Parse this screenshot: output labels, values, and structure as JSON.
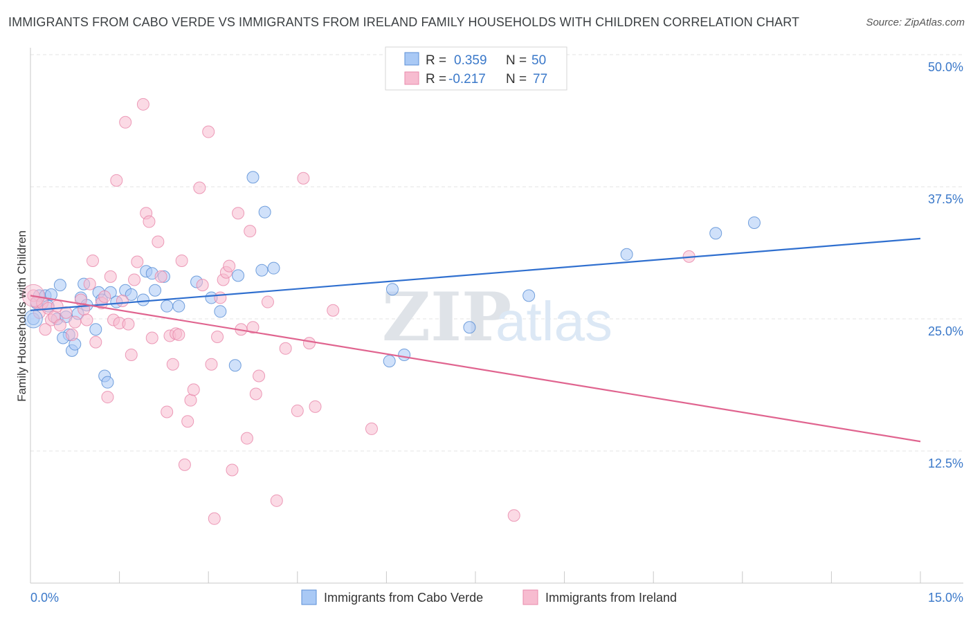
{
  "title": "IMMIGRANTS FROM CABO VERDE VS IMMIGRANTS FROM IRELAND FAMILY HOUSEHOLDS WITH CHILDREN CORRELATION CHART",
  "source": "Source: ZipAtlas.com",
  "watermark": {
    "zip": "ZIP",
    "atlas": "atlas"
  },
  "legend": {
    "r_label": "R =",
    "n_label": "N =",
    "rows": [
      {
        "r": "0.359",
        "n": "50",
        "fill": "#a9c9f5",
        "stroke": "#5b8fd6"
      },
      {
        "r": "-0.217",
        "n": "77",
        "fill": "#f7bcd0",
        "stroke": "#e98aab"
      }
    ]
  },
  "chart_data": {
    "type": "scatter",
    "title": "IMMIGRANTS FROM CABO VERDE VS IMMIGRANTS FROM IRELAND FAMILY HOUSEHOLDS WITH CHILDREN CORRELATION CHART",
    "xlabel": "",
    "ylabel": "Family Households with Children",
    "xlim": [
      0,
      15
    ],
    "ylim": [
      0,
      50
    ],
    "x_tick_labels": [
      "0.0%",
      "15.0%"
    ],
    "y_ticks": [
      12.5,
      25.0,
      37.5,
      50.0
    ],
    "y_tick_labels": [
      "12.5%",
      "25.0%",
      "37.5%",
      "50.0%"
    ],
    "grid": true,
    "legend_position": "top-center",
    "series": [
      {
        "name": "Immigrants from Cabo Verde",
        "color": "#a9c9f5",
        "stroke": "#5b8fd6",
        "line_color": "#2f6fcf",
        "trend": {
          "x": [
            0,
            15
          ],
          "y": [
            25.8,
            32.6
          ]
        },
        "points": [
          [
            0.05,
            25.0
          ],
          [
            0.1,
            26.5
          ],
          [
            0.15,
            27.2
          ],
          [
            0.25,
            27.2
          ],
          [
            0.35,
            27.3
          ],
          [
            0.5,
            28.2
          ],
          [
            0.45,
            25.0
          ],
          [
            0.6,
            25.2
          ],
          [
            0.65,
            23.5
          ],
          [
            0.7,
            22.0
          ],
          [
            0.75,
            22.6
          ],
          [
            0.8,
            25.5
          ],
          [
            0.85,
            27.0
          ],
          [
            0.9,
            28.3
          ],
          [
            0.95,
            26.3
          ],
          [
            1.1,
            24.0
          ],
          [
            1.15,
            27.5
          ],
          [
            1.2,
            26.8
          ],
          [
            1.25,
            19.6
          ],
          [
            1.3,
            19.0
          ],
          [
            1.35,
            27.5
          ],
          [
            1.45,
            26.6
          ],
          [
            1.6,
            27.7
          ],
          [
            1.7,
            27.3
          ],
          [
            1.9,
            26.8
          ],
          [
            1.95,
            29.5
          ],
          [
            2.05,
            29.3
          ],
          [
            2.1,
            27.7
          ],
          [
            2.25,
            29.0
          ],
          [
            2.3,
            26.2
          ],
          [
            2.5,
            26.2
          ],
          [
            2.8,
            28.5
          ],
          [
            3.05,
            27.0
          ],
          [
            3.2,
            25.7
          ],
          [
            3.45,
            20.6
          ],
          [
            3.5,
            29.1
          ],
          [
            3.75,
            38.4
          ],
          [
            3.9,
            29.6
          ],
          [
            3.95,
            35.1
          ],
          [
            4.1,
            29.8
          ],
          [
            6.05,
            21.0
          ],
          [
            6.1,
            27.8
          ],
          [
            6.3,
            21.6
          ],
          [
            7.4,
            24.2
          ],
          [
            8.4,
            27.2
          ],
          [
            10.05,
            31.1
          ],
          [
            11.55,
            33.1
          ],
          [
            12.2,
            34.1
          ],
          [
            0.3,
            26.2
          ],
          [
            0.55,
            23.2
          ]
        ]
      },
      {
        "name": "Immigrants from Ireland",
        "color": "#f7bcd0",
        "stroke": "#e98aab",
        "line_color": "#e0648f",
        "trend": {
          "x": [
            0,
            15
          ],
          "y": [
            27.2,
            13.4
          ]
        },
        "points": [
          [
            0.05,
            27.2
          ],
          [
            0.1,
            26.6
          ],
          [
            0.15,
            25.6
          ],
          [
            0.2,
            26.5
          ],
          [
            0.3,
            26.0
          ],
          [
            0.35,
            24.9
          ],
          [
            0.4,
            25.2
          ],
          [
            0.45,
            26.2
          ],
          [
            0.5,
            24.4
          ],
          [
            0.6,
            25.6
          ],
          [
            0.7,
            23.5
          ],
          [
            0.75,
            24.7
          ],
          [
            0.85,
            26.8
          ],
          [
            0.9,
            25.9
          ],
          [
            0.95,
            24.9
          ],
          [
            1.0,
            28.3
          ],
          [
            1.05,
            30.5
          ],
          [
            1.1,
            22.8
          ],
          [
            1.2,
            26.5
          ],
          [
            1.25,
            27.1
          ],
          [
            1.3,
            17.6
          ],
          [
            1.35,
            29.0
          ],
          [
            1.4,
            24.9
          ],
          [
            1.45,
            38.1
          ],
          [
            1.5,
            24.6
          ],
          [
            1.55,
            26.7
          ],
          [
            1.6,
            43.6
          ],
          [
            1.65,
            24.5
          ],
          [
            1.7,
            21.6
          ],
          [
            1.75,
            28.7
          ],
          [
            1.8,
            30.4
          ],
          [
            1.9,
            45.3
          ],
          [
            1.95,
            35.0
          ],
          [
            2.0,
            34.2
          ],
          [
            2.05,
            23.2
          ],
          [
            2.15,
            32.3
          ],
          [
            2.2,
            29.0
          ],
          [
            2.3,
            16.2
          ],
          [
            2.35,
            23.4
          ],
          [
            2.4,
            20.7
          ],
          [
            2.45,
            23.6
          ],
          [
            2.5,
            23.5
          ],
          [
            2.55,
            30.5
          ],
          [
            2.6,
            11.2
          ],
          [
            2.65,
            15.3
          ],
          [
            2.7,
            17.3
          ],
          [
            2.75,
            18.3
          ],
          [
            2.85,
            37.4
          ],
          [
            2.9,
            28.2
          ],
          [
            3.0,
            42.7
          ],
          [
            3.05,
            20.7
          ],
          [
            3.1,
            6.1
          ],
          [
            3.15,
            23.3
          ],
          [
            3.2,
            27.0
          ],
          [
            3.25,
            28.7
          ],
          [
            3.3,
            29.4
          ],
          [
            3.35,
            30.0
          ],
          [
            3.4,
            10.7
          ],
          [
            3.5,
            35.0
          ],
          [
            3.55,
            24.0
          ],
          [
            3.65,
            13.7
          ],
          [
            3.7,
            33.3
          ],
          [
            3.75,
            24.2
          ],
          [
            3.8,
            17.9
          ],
          [
            3.85,
            19.6
          ],
          [
            4.0,
            26.6
          ],
          [
            4.15,
            7.8
          ],
          [
            4.3,
            22.2
          ],
          [
            4.5,
            16.3
          ],
          [
            4.6,
            38.3
          ],
          [
            4.7,
            22.7
          ],
          [
            4.8,
            16.7
          ],
          [
            5.1,
            25.8
          ],
          [
            5.75,
            14.6
          ],
          [
            8.15,
            6.4
          ],
          [
            11.1,
            30.9
          ],
          [
            0.25,
            24.0
          ]
        ]
      }
    ]
  }
}
